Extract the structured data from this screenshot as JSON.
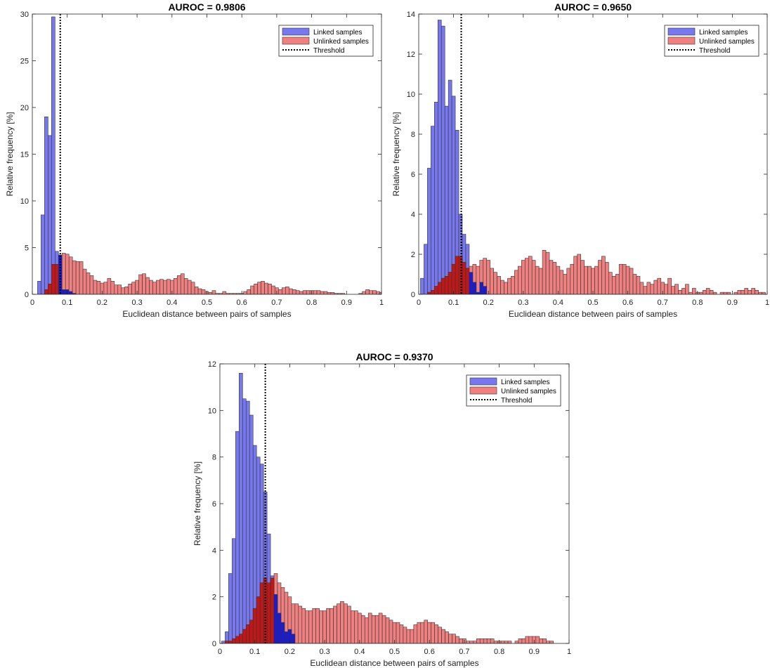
{
  "figure": {
    "legend_labels": [
      "Linked samples",
      "Unlinked samples",
      "Threshold"
    ],
    "colors": {
      "linked": "#7777ee",
      "unlinked": "#f08080",
      "overlap": "#c01818",
      "linked_front": "#1b1bd0",
      "edge": "#333333",
      "threshold": "#000000"
    }
  },
  "chart_data": [
    {
      "type": "bar",
      "title": "AUROC = 0.9806",
      "xlabel": "Euclidean distance between pairs of samples",
      "ylabel": "Relative frequency [%]",
      "xlim": [
        0,
        1
      ],
      "ylim": [
        0,
        30
      ],
      "xticks": [
        0,
        0.1,
        0.2,
        0.3,
        0.4,
        0.5,
        0.6,
        0.7,
        0.8,
        0.9,
        1
      ],
      "yticks": [
        0,
        5,
        10,
        15,
        20,
        25,
        30
      ],
      "bin_width": 0.01,
      "threshold": 0.08,
      "legend": "top-right",
      "series": [
        {
          "name": "Linked samples",
          "x_start": 0.015,
          "values": [
            1.4,
            8.5,
            19.0,
            17.0,
            29.7,
            4.6,
            4.2,
            0.5,
            0.5,
            0.3,
            0.1
          ]
        },
        {
          "name": "Unlinked samples",
          "x_start": 0.035,
          "values": [
            0.5,
            1.1,
            3.2,
            3.2,
            4.2,
            4.4,
            4.3,
            4.0,
            3.6,
            3.5,
            3.5,
            2.7,
            2.3,
            2.0,
            1.5,
            1.4,
            1.2,
            1.3,
            1.7,
            1.4,
            1.0,
            1.0,
            0.7,
            0.8,
            1.1,
            1.3,
            1.5,
            2.1,
            2.2,
            1.8,
            1.5,
            1.3,
            1.5,
            1.6,
            1.5,
            1.6,
            1.5,
            1.7,
            2.0,
            2.2,
            1.7,
            1.5,
            1.3,
            0.8,
            0.6,
            0.5,
            0.3,
            0.2,
            0.4,
            0.1,
            0.1,
            0.3,
            0.1,
            0.1,
            0.1,
            0.1,
            0.1,
            0.3,
            0.5,
            0.9,
            1.1,
            1.3,
            1.4,
            1.2,
            1.1,
            0.9,
            0.7,
            0.5,
            0.7,
            0.8,
            0.6,
            0.5,
            0.4,
            0.3,
            0.4,
            0.4,
            0.4,
            0.4,
            0.4,
            0.3,
            0.3,
            0.2,
            0.2,
            0.1,
            0.1,
            0.1,
            0.0,
            0.0,
            0.0,
            0.0,
            0.1,
            0.3,
            0.5,
            0.4,
            0.4,
            0.3,
            0.2
          ]
        }
      ]
    },
    {
      "type": "bar",
      "title": "AUROC = 0.9650",
      "xlabel": "Euclidean distance between pairs of samples",
      "ylabel": "Relative frequency [%]",
      "xlim": [
        0,
        1
      ],
      "ylim": [
        0,
        14
      ],
      "xticks": [
        0,
        0.1,
        0.2,
        0.3,
        0.4,
        0.5,
        0.6,
        0.7,
        0.8,
        0.9,
        1
      ],
      "yticks": [
        0,
        2,
        4,
        6,
        8,
        10,
        12,
        14
      ],
      "bin_width": 0.01,
      "threshold": 0.122,
      "legend": "top-right",
      "series": [
        {
          "name": "Linked samples",
          "x_start": 0.005,
          "values": [
            0.8,
            2.5,
            6.3,
            8.4,
            9.6,
            13.7,
            13.4,
            9.4,
            10.7,
            9.9,
            8.2,
            4.0,
            3.0,
            2.5,
            1.1,
            0.6,
            0.1,
            0.6,
            0.4
          ]
        },
        {
          "name": "Unlinked samples",
          "x_start": 0.005,
          "values": [
            0.0,
            0.0,
            0.1,
            0.2,
            0.4,
            0.6,
            0.8,
            0.9,
            1.1,
            1.5,
            1.9,
            1.9,
            1.6,
            1.3,
            1.4,
            1.5,
            1.4,
            1.7,
            1.8,
            1.7,
            1.3,
            1.1,
            0.9,
            0.7,
            0.6,
            0.8,
            0.9,
            1.2,
            1.4,
            1.7,
            1.8,
            1.9,
            1.7,
            1.4,
            1.3,
            2.2,
            2.1,
            1.7,
            1.6,
            1.4,
            1.2,
            1.0,
            1.3,
            1.5,
            1.9,
            2.0,
            1.7,
            1.4,
            1.4,
            1.3,
            1.4,
            1.7,
            1.9,
            1.6,
            1.1,
            0.9,
            1.0,
            1.5,
            1.5,
            1.4,
            1.3,
            1.0,
            0.9,
            0.6,
            0.4,
            0.6,
            0.5,
            0.7,
            0.8,
            0.6,
            0.5,
            0.8,
            0.4,
            0.5,
            0.2,
            0.3,
            0.5,
            0.1,
            0.3,
            0.1,
            0.1,
            0.2,
            0.3,
            0.2,
            0.1,
            0.0,
            0.1,
            0.1,
            0.1,
            0.0,
            0.1,
            0.2,
            0.2,
            0.3,
            0.2,
            0.3,
            0.2,
            0.1,
            0.1
          ]
        }
      ]
    },
    {
      "type": "bar",
      "title": "AUROC = 0.9370",
      "xlabel": "Euclidean distance between pairs of samples",
      "ylabel": "Relative frequency [%]",
      "xlim": [
        0,
        1
      ],
      "ylim": [
        0,
        12
      ],
      "xticks": [
        0,
        0.1,
        0.2,
        0.3,
        0.4,
        0.5,
        0.6,
        0.7,
        0.8,
        0.9,
        1
      ],
      "yticks": [
        0,
        2,
        4,
        6,
        8,
        10,
        12
      ],
      "bin_width": 0.01,
      "threshold": 0.13,
      "legend": "top-right",
      "series": [
        {
          "name": "Linked samples",
          "x_start": 0.005,
          "values": [
            0.1,
            0.5,
            3.0,
            4.5,
            9.1,
            11.6,
            10.5,
            10.4,
            9.8,
            8.5,
            8.0,
            7.7,
            6.5,
            4.7,
            2.9,
            2.1,
            1.3,
            0.9,
            0.5,
            0.6,
            0.4
          ]
        },
        {
          "name": "Unlinked samples",
          "x_start": 0.005,
          "values": [
            0.0,
            0.1,
            0.1,
            0.2,
            0.3,
            0.4,
            0.6,
            0.8,
            1.0,
            1.5,
            2.0,
            2.6,
            2.8,
            2.6,
            2.8,
            3.0,
            2.6,
            2.4,
            2.2,
            2.0,
            1.7,
            1.7,
            1.6,
            1.5,
            1.4,
            1.4,
            1.5,
            1.5,
            1.4,
            1.4,
            1.5,
            1.5,
            1.6,
            1.7,
            1.8,
            1.7,
            1.6,
            1.4,
            1.4,
            1.3,
            1.2,
            1.1,
            1.3,
            1.2,
            1.2,
            1.3,
            1.2,
            1.1,
            1.0,
            0.9,
            0.9,
            0.8,
            0.7,
            0.6,
            0.6,
            0.8,
            0.9,
            0.9,
            1.0,
            0.9,
            0.9,
            0.8,
            0.7,
            0.6,
            0.5,
            0.4,
            0.4,
            0.3,
            0.2,
            0.2,
            0.1,
            0.1,
            0.1,
            0.2,
            0.2,
            0.2,
            0.2,
            0.2,
            0.1,
            0.1,
            0.1,
            0.1,
            0.1,
            0.0,
            0.1,
            0.2,
            0.2,
            0.3,
            0.3,
            0.3,
            0.3,
            0.2,
            0.2,
            0.1,
            0.1,
            0.0,
            0.0
          ]
        }
      ]
    }
  ]
}
